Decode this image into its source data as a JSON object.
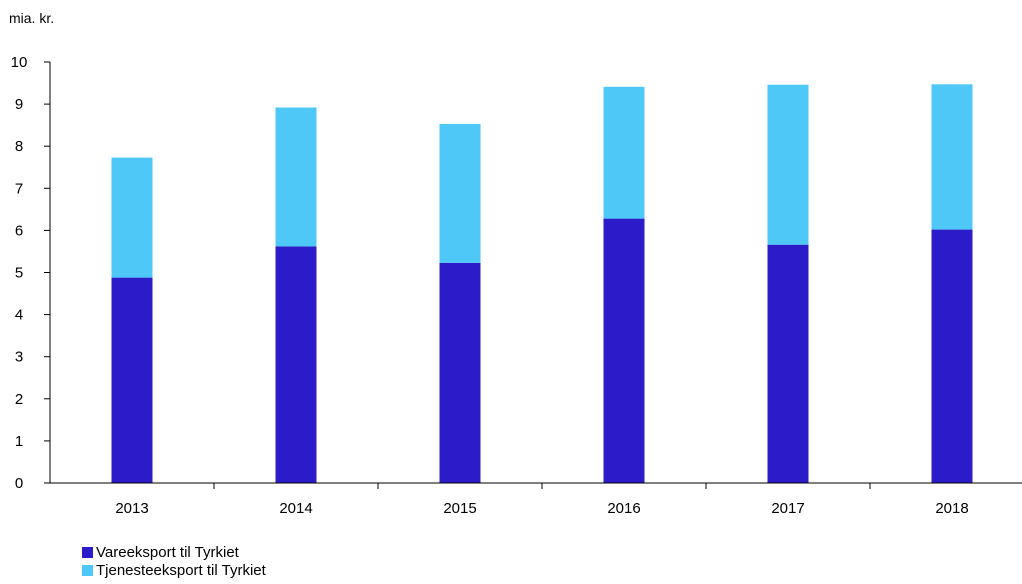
{
  "chart_data": {
    "type": "bar",
    "stacked": true,
    "unit_label": "mia. kr.",
    "categories": [
      "2013",
      "2014",
      "2015",
      "2016",
      "2017",
      "2018"
    ],
    "series": [
      {
        "name": "Vareeksport til Tyrkiet",
        "color": "#2b1bc8",
        "values": [
          4.88,
          5.62,
          5.23,
          6.28,
          5.66,
          6.02
        ]
      },
      {
        "name": "Tjenesteeksport til Tyrkiet",
        "color": "#4ec8f7",
        "values": [
          2.85,
          3.3,
          3.3,
          3.13,
          3.8,
          3.45
        ]
      }
    ],
    "ylim": [
      0,
      10
    ],
    "yticks": [
      "0",
      "1",
      "2",
      "3",
      "4",
      "5",
      "6",
      "7",
      "8",
      "9",
      "10"
    ],
    "grid": false,
    "legend_position": "bottom-left"
  }
}
